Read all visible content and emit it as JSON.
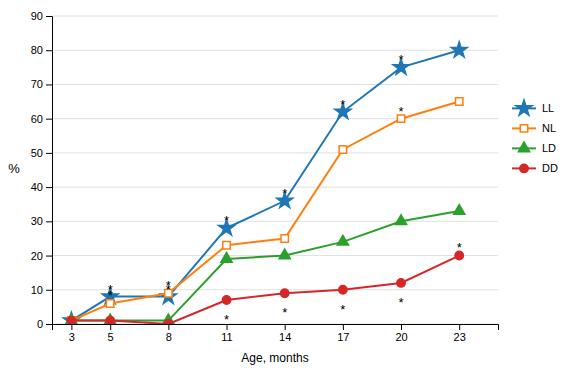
{
  "chart_data": {
    "type": "line",
    "x": [
      3,
      5,
      8,
      11,
      14,
      17,
      20,
      23
    ],
    "xlabel": "Age, months",
    "ylabel": "%",
    "xlim": [
      2,
      25
    ],
    "xticks": [
      3,
      5,
      8,
      11,
      14,
      17,
      20,
      23
    ],
    "ylim": [
      0,
      90
    ],
    "yticks": [
      0,
      10,
      20,
      30,
      40,
      50,
      60,
      70,
      80,
      90
    ],
    "grid": "y",
    "legend": "right",
    "series": [
      {
        "name": "LL",
        "marker": "star",
        "values": [
          1,
          8,
          8,
          28,
          36,
          62,
          75,
          80
        ]
      },
      {
        "name": "NL",
        "marker": "square-open",
        "values": [
          1,
          6,
          9,
          23,
          25,
          51,
          60,
          65
        ]
      },
      {
        "name": "LD",
        "marker": "triangle",
        "values": [
          1,
          1,
          1,
          19,
          20,
          24,
          30,
          33
        ]
      },
      {
        "name": "DD",
        "marker": "circle",
        "values": [
          1,
          1,
          0,
          7,
          9,
          10,
          12,
          20
        ]
      }
    ],
    "annotations": [
      {
        "text": "*",
        "x": 5,
        "y": 11
      },
      {
        "text": "*",
        "x": 8,
        "y": 11
      },
      {
        "text": "*",
        "x": 11,
        "y": 31
      },
      {
        "text": "*",
        "x": 14,
        "y": 39
      },
      {
        "text": "*",
        "x": 17,
        "y": 65
      },
      {
        "text": "*",
        "x": 20,
        "y": 78
      },
      {
        "text": "*",
        "x": 5,
        "y": 9
      },
      {
        "text": "*",
        "x": 8,
        "y": 12
      },
      {
        "text": "*",
        "x": 20,
        "y": 63
      },
      {
        "text": "*",
        "x": 11,
        "y": 2
      },
      {
        "text": "*",
        "x": 14,
        "y": 4
      },
      {
        "text": "*",
        "x": 17,
        "y": 5
      },
      {
        "text": "*",
        "x": 20,
        "y": 7
      },
      {
        "text": "*",
        "x": 23,
        "y": 23
      }
    ]
  }
}
